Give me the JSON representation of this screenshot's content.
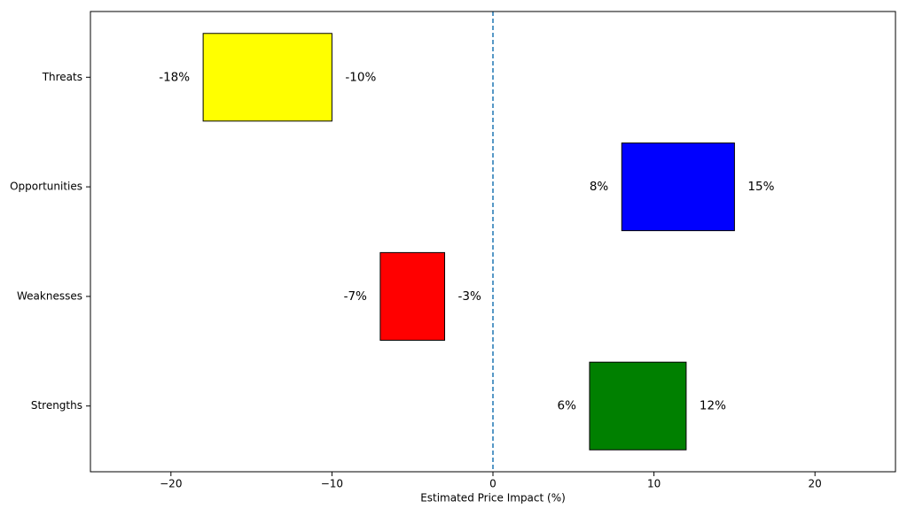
{
  "chart_data": {
    "type": "range-bar",
    "x_label": "Estimated Price Impact (%)",
    "categories": [
      "Strengths",
      "Weaknesses",
      "Opportunities",
      "Threats"
    ],
    "colors": [
      "#008000",
      "#ff0000",
      "#0000ff",
      "#ffff00"
    ],
    "low": {
      "values": [
        6,
        -7,
        8,
        -18
      ],
      "value_labels": [
        "6%",
        "-7%",
        "8%",
        "-18%"
      ]
    },
    "high": {
      "values": [
        12,
        -3,
        15,
        -10
      ],
      "value_labels": [
        "12%",
        "-3%",
        "15%",
        "-10%"
      ]
    },
    "xlim": [
      -25,
      25
    ],
    "xticks": [
      {
        "value": -20,
        "label": "−20"
      },
      {
        "value": -10,
        "label": "−10"
      },
      0,
      10,
      20
    ],
    "reference_line": {
      "x": 0,
      "color": "#1f77b4",
      "style": "dashed"
    }
  }
}
